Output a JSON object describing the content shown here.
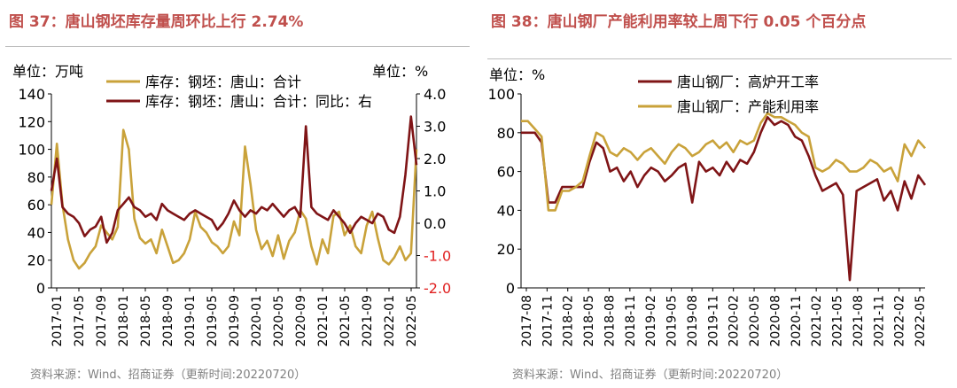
{
  "chart_data": [
    {
      "type": "line",
      "title": "图 37：唐山钢坯库存量周环比上行 2.74%",
      "source": "资料来源：Wind、招商证券（更新时间:20220720）",
      "left_unit": "单位：万吨",
      "right_unit": "单位：%",
      "x_tick_labels": [
        "2017-01",
        "2017-05",
        "2017-09",
        "2018-01",
        "2018-05",
        "2018-09",
        "2019-01",
        "2019-05",
        "2019-09",
        "2020-01",
        "2020-05",
        "2020-09",
        "2021-01",
        "2021-05",
        "2021-09",
        "2022-01",
        "2022-05"
      ],
      "ylim_left": [
        0,
        140
      ],
      "yticks_left": [
        "0",
        "20",
        "40",
        "60",
        "80",
        "100",
        "120",
        "140"
      ],
      "ylim_right": [
        -2.0,
        4.0
      ],
      "yticks_right": [
        "-2.0",
        "-1.0",
        "0.0",
        "1.0",
        "2.0",
        "3.0",
        "4.0"
      ],
      "x_range": [
        0,
        66
      ],
      "legend_position": "top-center",
      "colors": {
        "stock": "#c9a23a",
        "yoy": "#7f1416",
        "negative_tick": "#e02020"
      },
      "series": [
        {
          "name": "库存：钢坯：唐山：合计",
          "axis": "left",
          "x": [
            0,
            1,
            2,
            3,
            4,
            5,
            6,
            7,
            8,
            9,
            10,
            11,
            12,
            13,
            14,
            15,
            16,
            17,
            18,
            19,
            20,
            21,
            22,
            23,
            24,
            25,
            26,
            27,
            28,
            29,
            30,
            31,
            32,
            33,
            34,
            35,
            36,
            37,
            38,
            39,
            40,
            41,
            42,
            43,
            44,
            45,
            46,
            47,
            48,
            49,
            50,
            51,
            52,
            53,
            54,
            55,
            56,
            57,
            58,
            59,
            60,
            61,
            62,
            63,
            64,
            65,
            66
          ],
          "values": [
            60,
            104,
            60,
            35,
            20,
            14,
            18,
            25,
            30,
            45,
            40,
            35,
            44,
            114,
            100,
            50,
            36,
            32,
            35,
            25,
            42,
            30,
            18,
            20,
            25,
            35,
            55,
            44,
            40,
            33,
            30,
            25,
            30,
            48,
            38,
            102,
            75,
            42,
            28,
            34,
            23,
            38,
            21,
            34,
            40,
            56,
            50,
            30,
            17,
            35,
            25,
            52,
            55,
            38,
            45,
            30,
            25,
            45,
            55,
            36,
            20,
            17,
            22,
            30,
            20,
            25,
            100
          ]
        },
        {
          "name": "库存：钢坯：唐山：合计：同比：右",
          "axis": "right",
          "x": [
            0,
            1,
            2,
            3,
            4,
            5,
            6,
            7,
            8,
            9,
            10,
            11,
            12,
            13,
            14,
            15,
            16,
            17,
            18,
            19,
            20,
            21,
            22,
            23,
            24,
            25,
            26,
            27,
            28,
            29,
            30,
            31,
            32,
            33,
            34,
            35,
            36,
            37,
            38,
            39,
            40,
            41,
            42,
            43,
            44,
            45,
            46,
            47,
            48,
            49,
            50,
            51,
            52,
            53,
            54,
            55,
            56,
            57,
            58,
            59,
            60,
            61,
            62,
            63,
            64,
            65,
            66
          ],
          "values": [
            1.0,
            2.0,
            0.5,
            0.3,
            0.2,
            0.0,
            -0.4,
            -0.2,
            -0.1,
            0.2,
            -0.6,
            -0.3,
            0.4,
            0.6,
            0.8,
            0.5,
            0.4,
            0.2,
            0.3,
            0.1,
            0.6,
            0.4,
            0.3,
            0.2,
            0.1,
            0.3,
            0.4,
            0.3,
            0.2,
            0.1,
            -0.2,
            0.0,
            0.3,
            0.7,
            0.4,
            0.2,
            0.4,
            0.3,
            0.5,
            0.4,
            0.6,
            0.4,
            0.2,
            0.4,
            0.5,
            0.2,
            3.0,
            0.5,
            0.3,
            0.2,
            0.1,
            0.4,
            0.2,
            0.0,
            -0.3,
            0.0,
            0.2,
            0.1,
            0.0,
            0.3,
            0.2,
            -0.2,
            -0.3,
            0.2,
            1.5,
            3.3,
            1.8
          ]
        }
      ]
    },
    {
      "type": "line",
      "title": "图 38：唐山钢厂产能利用率较上周下行 0.05 个百分点",
      "source": "资料来源：Wind、招商证券（更新时间:20220720）",
      "left_unit": "单位：%",
      "x_tick_labels": [
        "2017-08",
        "2017-11",
        "2018-02",
        "2018-05",
        "2018-08",
        "2018-11",
        "2019-02",
        "2019-05",
        "2019-08",
        "2019-11",
        "2020-02",
        "2020-05",
        "2020-08",
        "2020-11",
        "2021-02",
        "2021-05",
        "2021-08",
        "2021-11",
        "2022-02",
        "2022-05"
      ],
      "ylim_left": [
        0,
        100
      ],
      "yticks_left": [
        "0",
        "20",
        "40",
        "60",
        "80",
        "100"
      ],
      "x_range": [
        0,
        59
      ],
      "legend_position": "top-center",
      "colors": {
        "furnace": "#7f1416",
        "capacity": "#c9a23a"
      },
      "series": [
        {
          "name": "唐山钢厂：高炉开工率",
          "x": [
            0,
            1,
            2,
            3,
            4,
            5,
            6,
            7,
            8,
            9,
            10,
            11,
            12,
            13,
            14,
            15,
            16,
            17,
            18,
            19,
            20,
            21,
            22,
            23,
            24,
            25,
            26,
            27,
            28,
            29,
            30,
            31,
            32,
            33,
            34,
            35,
            36,
            37,
            38,
            39,
            40,
            41,
            42,
            43,
            44,
            45,
            46,
            47,
            48,
            49,
            50,
            51,
            52,
            53,
            54,
            55,
            56,
            57,
            58,
            59
          ],
          "values": [
            80,
            80,
            80,
            75,
            44,
            44,
            52,
            52,
            52,
            52,
            65,
            75,
            72,
            60,
            62,
            55,
            60,
            52,
            58,
            62,
            60,
            55,
            58,
            62,
            64,
            44,
            65,
            60,
            62,
            58,
            65,
            60,
            66,
            64,
            70,
            80,
            88,
            84,
            86,
            84,
            78,
            76,
            68,
            58,
            50,
            52,
            54,
            48,
            4,
            50,
            52,
            54,
            56,
            45,
            50,
            40,
            55,
            46,
            58,
            53
          ]
        },
        {
          "name": "唐山钢厂：产能利用率",
          "x": [
            0,
            1,
            2,
            3,
            4,
            5,
            6,
            7,
            8,
            9,
            10,
            11,
            12,
            13,
            14,
            15,
            16,
            17,
            18,
            19,
            20,
            21,
            22,
            23,
            24,
            25,
            26,
            27,
            28,
            29,
            30,
            31,
            32,
            33,
            34,
            35,
            36,
            37,
            38,
            39,
            40,
            41,
            42,
            43,
            44,
            45,
            46,
            47,
            48,
            49,
            50,
            51,
            52,
            53,
            54,
            55,
            56,
            57,
            58,
            59
          ],
          "values": [
            86,
            86,
            82,
            78,
            40,
            40,
            50,
            50,
            52,
            55,
            68,
            80,
            78,
            70,
            68,
            72,
            70,
            66,
            70,
            72,
            68,
            64,
            70,
            74,
            72,
            68,
            70,
            74,
            76,
            72,
            75,
            70,
            76,
            74,
            76,
            85,
            90,
            88,
            88,
            86,
            84,
            80,
            78,
            62,
            60,
            62,
            66,
            64,
            60,
            60,
            62,
            66,
            64,
            60,
            62,
            55,
            74,
            68,
            76,
            72
          ]
        }
      ]
    }
  ]
}
